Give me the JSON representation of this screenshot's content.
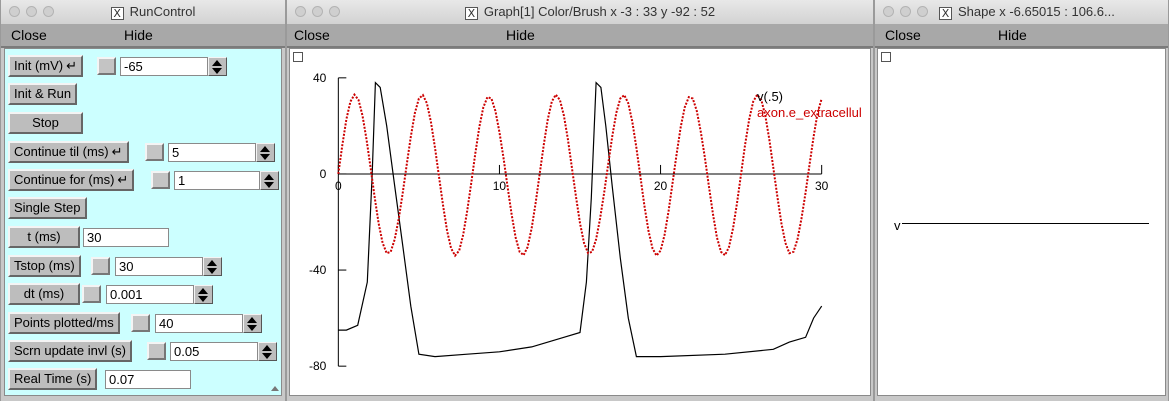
{
  "runcontrol": {
    "title": "RunControl",
    "menu": {
      "close": "Close",
      "hide": "Hide"
    },
    "rows": [
      {
        "label": "Init (mV)",
        "ret": "↵",
        "value": "-65"
      },
      {
        "label": "Init & Run"
      },
      {
        "label": "Stop"
      },
      {
        "label": "Continue til (ms)",
        "ret": "↵",
        "value": "5"
      },
      {
        "label": "Continue for (ms)",
        "ret": "↵",
        "value": "1"
      },
      {
        "label": "Single Step"
      },
      {
        "label": "t (ms)",
        "value": "30"
      },
      {
        "label": "Tstop (ms)",
        "value": "30"
      },
      {
        "label": "dt (ms)",
        "value": "0.001"
      },
      {
        "label": "Points plotted/ms",
        "value": "40"
      },
      {
        "label": "Scrn update invl (s)",
        "value": "0.05"
      },
      {
        "label": "Real Time (s)",
        "value": "0.07"
      }
    ]
  },
  "graph": {
    "title": "Graph[1] Color/Brush x -3 : 33  y -92 : 52",
    "menu": {
      "close": "Close",
      "hide": "Hide"
    },
    "legend": [
      {
        "name": "v(.5)",
        "color": "#000000"
      },
      {
        "name": "axon.e_extracellul",
        "color": "#cc0000"
      }
    ],
    "chart_data": {
      "type": "line",
      "title": "",
      "xlabel": "",
      "ylabel": "",
      "xlim": [
        -3,
        33
      ],
      "ylim": [
        -92,
        52
      ],
      "x_ticks": [
        "0",
        "10",
        "20",
        "30"
      ],
      "y_ticks": [
        "40",
        "0",
        "-40",
        "-80"
      ],
      "series": [
        {
          "name": "v(.5)",
          "color": "#000000",
          "x": [
            0,
            0.5,
            1.2,
            1.8,
            2.1,
            2.3,
            2.6,
            3.0,
            3.5,
            4.0,
            4.5,
            5.0,
            6.0,
            8.0,
            10.0,
            12.0,
            14.0,
            15.0,
            15.4,
            15.7,
            16.0,
            16.3,
            16.6,
            17.0,
            17.5,
            18.0,
            18.5,
            20.0,
            24.0,
            27.0,
            28.0,
            29.0,
            29.5,
            30.0
          ],
          "y": [
            -65,
            -65,
            -63,
            -45,
            0,
            38,
            36,
            20,
            -5,
            -30,
            -55,
            -75,
            -76,
            -75,
            -74,
            -72,
            -68,
            -66,
            -45,
            -10,
            38,
            36,
            20,
            -5,
            -35,
            -60,
            -76,
            -76,
            -75,
            -73,
            -70,
            -68,
            -60,
            -55
          ]
        },
        {
          "name": "axon.e_extracellul",
          "color": "#cc0000",
          "x": [
            0,
            0.25,
            0.5,
            0.75,
            1.0,
            1.25,
            1.5,
            1.75,
            2.0,
            2.25,
            2.5,
            2.75,
            3.0,
            3.25,
            3.5,
            3.75,
            4.0,
            4.25,
            4.5,
            4.75,
            5.0,
            5.25,
            5.5,
            5.75,
            6.0,
            6.25,
            6.5,
            6.75,
            7.0,
            7.25,
            7.5,
            7.75,
            8.0,
            8.25,
            8.5,
            8.75,
            9.0,
            9.25,
            9.5,
            9.75,
            10.0,
            10.25,
            10.5,
            10.75,
            11.0,
            11.25,
            11.5,
            11.75,
            12.0,
            12.25,
            12.5,
            12.75,
            13.0,
            13.25,
            13.5,
            13.75,
            14.0,
            14.25,
            14.5,
            14.75,
            15.0,
            15.25,
            15.5,
            15.75,
            16.0,
            16.25,
            16.5,
            16.75,
            17.0,
            17.25,
            17.5,
            17.75,
            18.0,
            18.25,
            18.5,
            18.75,
            19.0,
            19.25,
            19.5,
            19.75,
            20.0,
            20.25,
            20.5,
            20.75,
            21.0,
            21.25,
            21.5,
            21.75,
            22.0,
            22.25,
            22.5,
            22.75,
            23.0,
            23.25,
            23.5,
            23.75,
            24.0,
            24.25,
            24.5,
            24.75,
            25.0,
            25.25,
            25.5,
            25.75,
            26.0,
            26.25,
            26.5,
            26.75,
            27.0,
            27.25,
            27.5,
            27.75,
            28.0,
            28.25,
            28.5,
            28.75,
            29.0,
            29.25,
            29.5,
            29.75,
            30.0
          ],
          "y": [
            0,
            12.2,
            22.8,
            30.1,
            33.0,
            30.8,
            24.3,
            14.4,
            2.6,
            -9.5,
            -20.5,
            -28.7,
            -33.0,
            -32.4,
            -27.2,
            -18.5,
            -7.7,
            4.1,
            15.5,
            25.4,
            31.4,
            32.8,
            29.4,
            21.5,
            10.9,
            -1.1,
            -13.2,
            -23.7,
            -31.0,
            -34.0,
            -31.9,
            -25.3,
            -15.4,
            -3.6,
            8.5,
            19.5,
            27.7,
            32.0,
            31.4,
            26.2,
            17.5,
            6.7,
            -5.1,
            -16.5,
            -26.4,
            -32.4,
            -33.8,
            -30.4,
            -22.5,
            -11.9,
            0.1,
            12.2,
            22.8,
            30.1,
            33.0,
            30.8,
            24.3,
            14.4,
            2.6,
            -9.5,
            -20.5,
            -28.7,
            -33.0,
            -32.4,
            -27.2,
            -18.5,
            -7.7,
            4.1,
            15.5,
            25.4,
            31.4,
            32.8,
            29.4,
            21.5,
            10.9,
            -1.1,
            -13.2,
            -23.7,
            -31.0,
            -34.0,
            -31.9,
            -25.3,
            -15.4,
            -3.6,
            8.5,
            19.5,
            27.7,
            32.0,
            31.4,
            26.2,
            17.5,
            6.7,
            -5.1,
            -16.5,
            -26.4,
            -32.4,
            -33.8,
            -30.4,
            -22.5,
            -11.9,
            0.1,
            12.2,
            22.8,
            30.1,
            33.0,
            30.8,
            24.3,
            14.4,
            2.6,
            -9.5,
            -20.5,
            -28.7,
            -33.0,
            -32.4,
            -27.2,
            -18.5,
            -7.7,
            4.1,
            15.5,
            25.4,
            31.4
          ]
        }
      ]
    }
  },
  "shape": {
    "title": "Shape  x -6.65015 : 106.6...",
    "menu": {
      "close": "Close",
      "hide": "Hide"
    },
    "label": "v"
  },
  "colors": {
    "runcontrol_bg": "#ccffff",
    "trace_v": "#000000",
    "trace_extracellular": "#cc0000"
  }
}
